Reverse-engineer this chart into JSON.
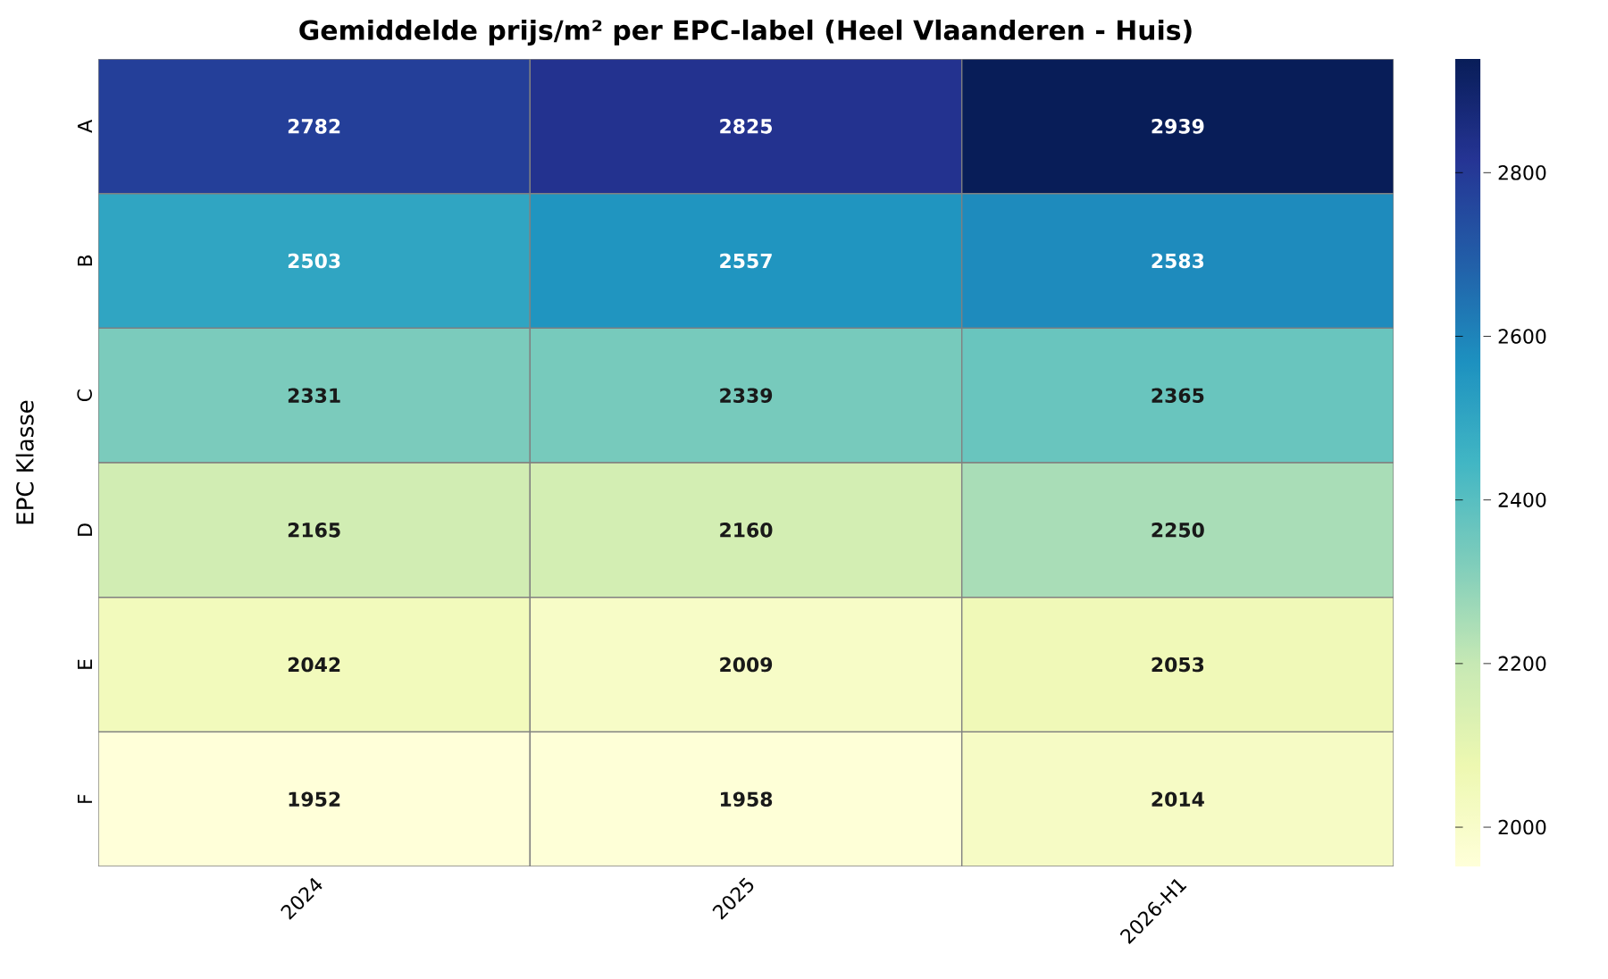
{
  "chart_data": {
    "type": "heatmap",
    "title": "Gemiddelde prijs/m² per EPC-label (Heel Vlaanderen - Huis)",
    "ylabel": "EPC Klasse",
    "categories": [
      "2024",
      "2025",
      "2026-H1"
    ],
    "y_categories": [
      "A",
      "B",
      "C",
      "D",
      "E",
      "F"
    ],
    "cells": [
      [
        2782,
        2825,
        2939
      ],
      [
        2503,
        2557,
        2583
      ],
      [
        2331,
        2339,
        2365
      ],
      [
        2165,
        2160,
        2250
      ],
      [
        2042,
        2009,
        2053
      ],
      [
        1952,
        1958,
        2014
      ]
    ],
    "data_labels": true,
    "clim": [
      1952,
      2939
    ],
    "cticks": [
      2000,
      2200,
      2400,
      2600,
      2800
    ]
  }
}
